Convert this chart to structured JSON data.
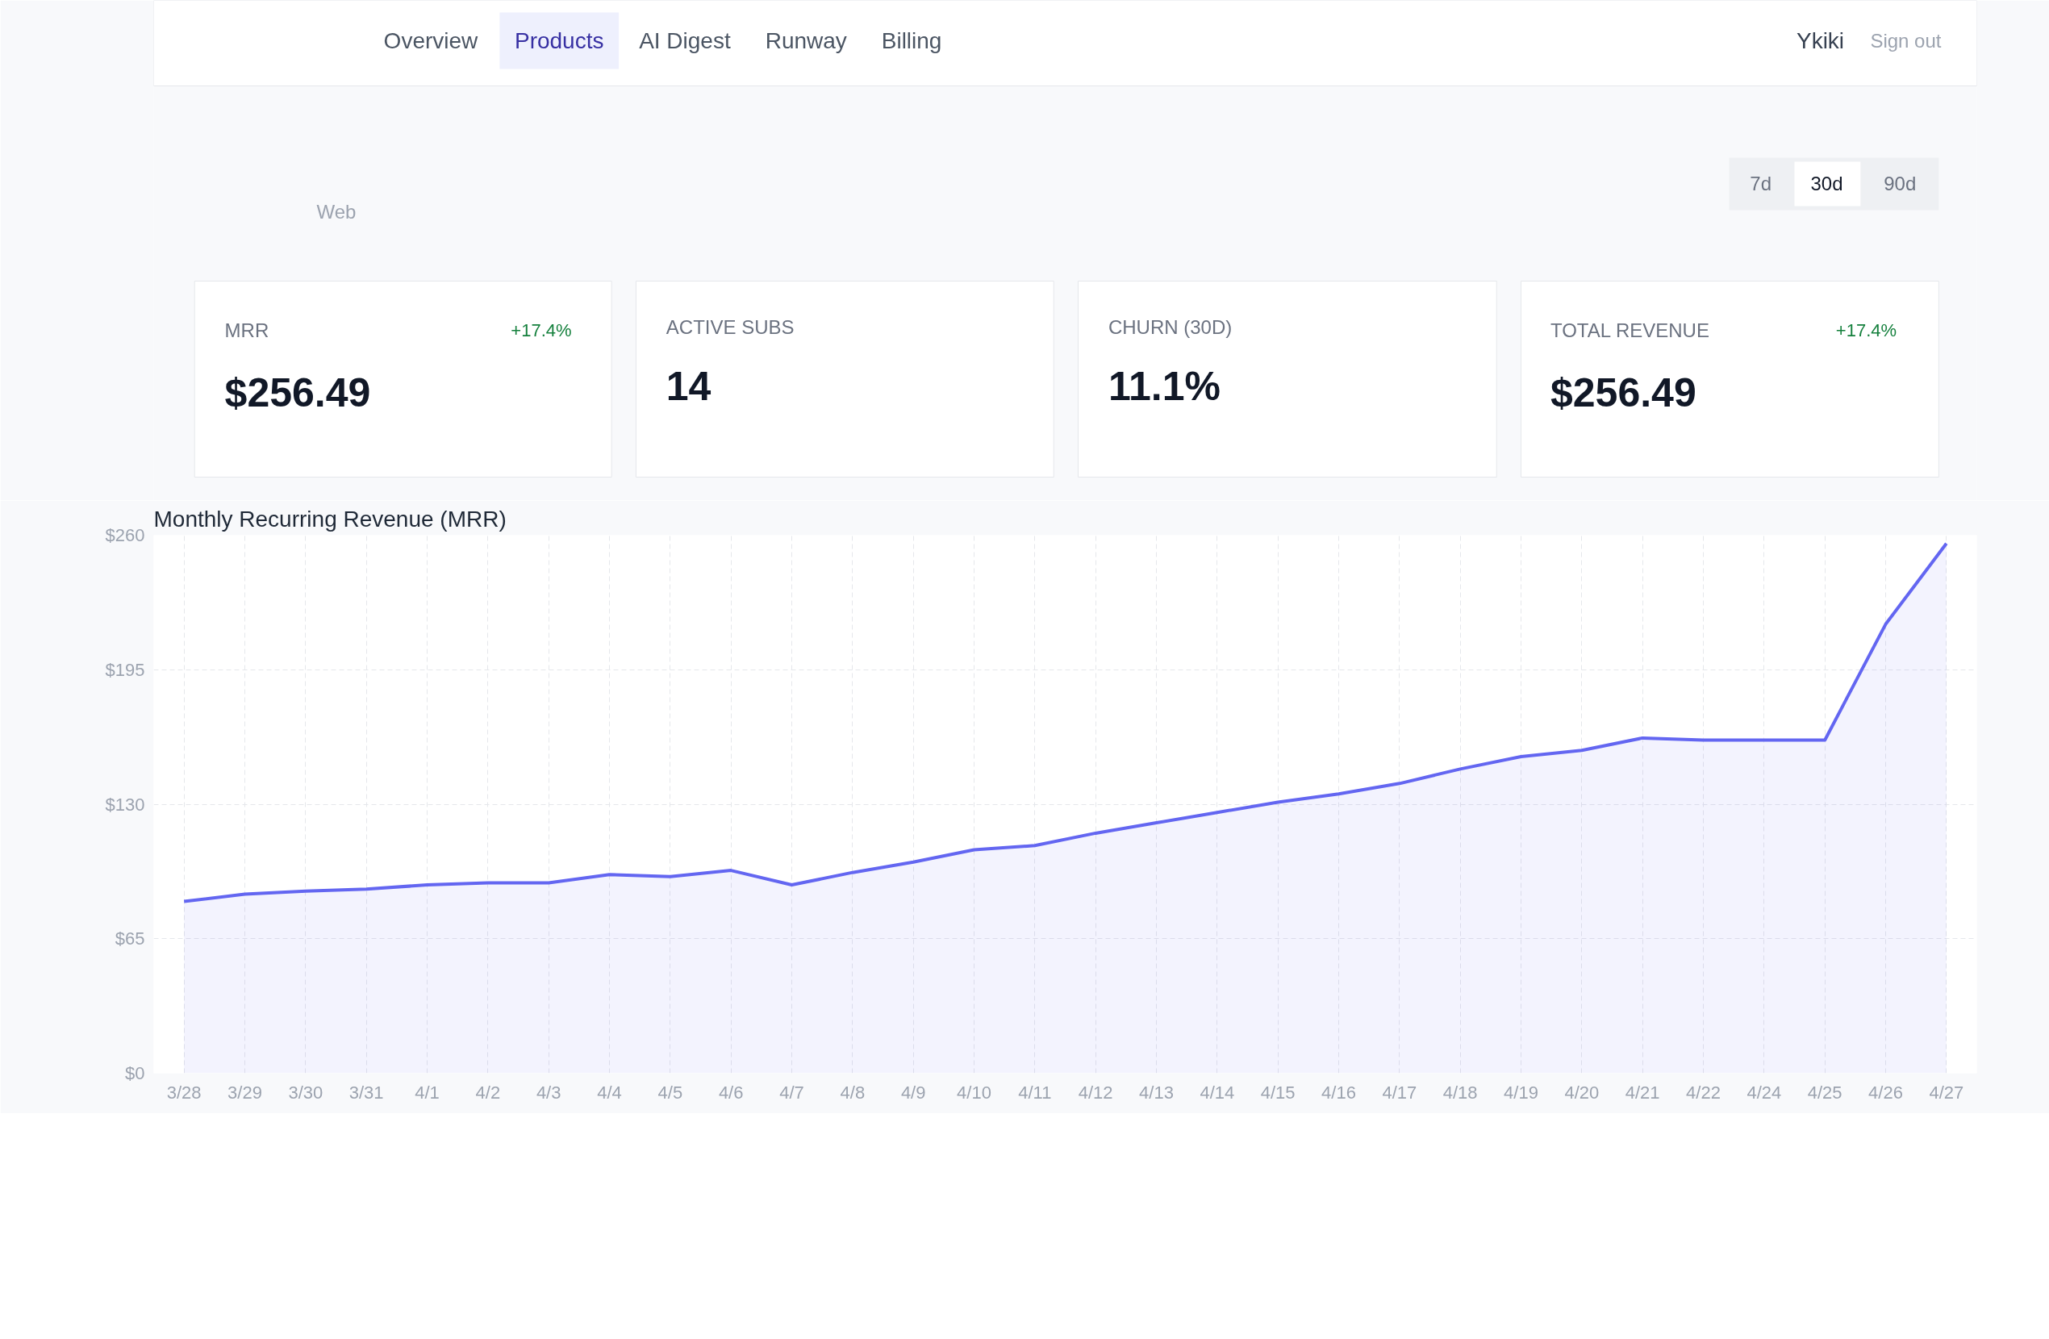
{
  "chart_data": [
    {
      "type": "other",
      "annotations": [
        "Overview",
        "Products",
        "AI Digest",
        "Runway",
        "Billing",
        "Ykiki",
        "Sign out",
        "Web",
        "7d",
        "30d",
        "90d",
        "MRR",
        "+17.4%",
        "$256.49",
        "ACTIVE SUBS",
        "14",
        "CHURN (30D)",
        "11.1%",
        "TOTAL REVENUE",
        "+17.4%",
        "$256.49"
      ]
    },
    {
      "type": "area",
      "title": "Monthly Recurring Revenue (MRR)",
      "categories": [
        "3/28",
        "3/29",
        "3/30",
        "3/31",
        "4/1",
        "4/2",
        "4/3",
        "4/4",
        "4/5",
        "4/6",
        "4/7",
        "4/8",
        "4/9",
        "4/10",
        "4/11",
        "4/12",
        "4/13",
        "4/14",
        "4/15",
        "4/16",
        "4/17",
        "4/18",
        "4/19",
        "4/20",
        "4/21",
        "4/22",
        "4/24",
        "4/25",
        "4/26",
        "4/27"
      ],
      "series": [
        {
          "color": "#6366f1",
          "values": [
            83,
            86.5,
            88,
            89,
            91,
            92,
            92,
            96,
            95,
            98,
            91,
            97,
            102,
            108,
            110,
            116,
            121,
            126,
            131,
            135,
            140,
            147,
            153,
            156,
            162,
            161,
            161,
            161,
            217,
            256
          ]
        }
      ],
      "ylim": [
        0,
        260
      ],
      "yticks": [
        {
          "value": 0,
          "label": "$0"
        },
        {
          "value": 65,
          "label": "$65"
        },
        {
          "value": 130,
          "label": "$130"
        },
        {
          "value": 195,
          "label": "$195"
        },
        {
          "value": 260,
          "label": "$260"
        }
      ],
      "grid": true
    }
  ]
}
